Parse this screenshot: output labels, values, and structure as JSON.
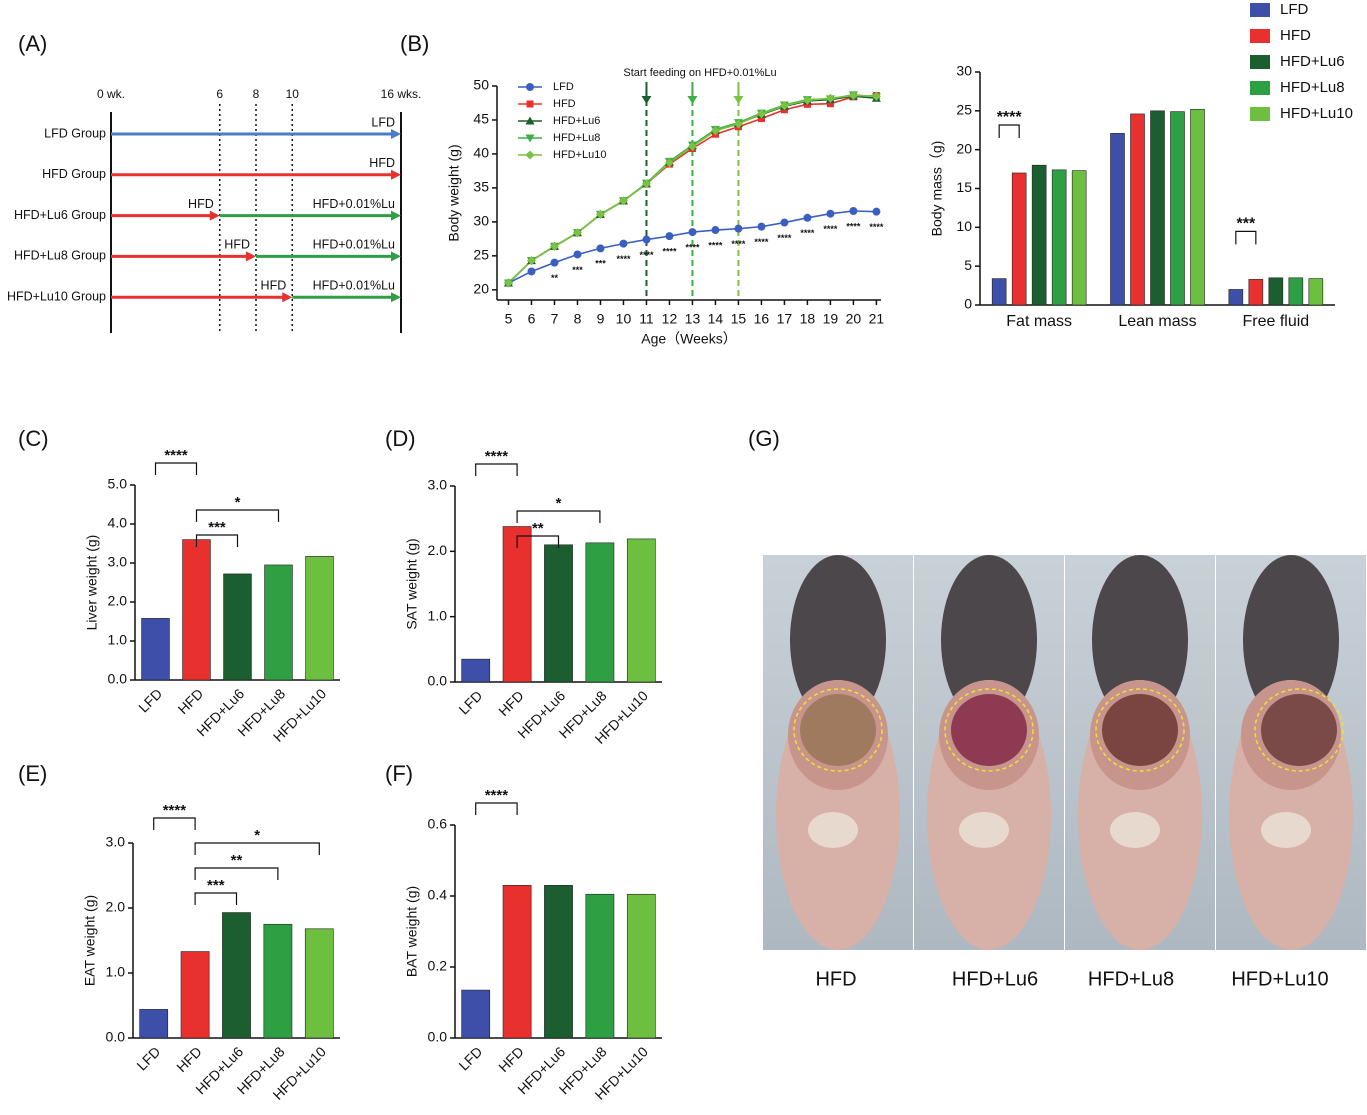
{
  "timeline": {
    "panel": "(A)",
    "ticks": [
      {
        "value": 0,
        "label": "0 wk."
      },
      6,
      8,
      10,
      {
        "value": 16,
        "label": "16 wks."
      }
    ],
    "rows": [
      {
        "name": "LFD Group",
        "color": "#4a7cc7",
        "segments": [
          {
            "label": "LFD",
            "color": "#4a7cc7",
            "to": 16
          }
        ]
      },
      {
        "name": "HFD Group",
        "color": "#e8312f",
        "segments": [
          {
            "label": "HFD",
            "color": "#e8312f",
            "to": 16
          }
        ]
      },
      {
        "name": "HFD+Lu6 Group",
        "color": "#1b6a2c",
        "segments": [
          {
            "label": "HFD",
            "color": "#e8312f",
            "to": 6
          },
          {
            "label": "HFD+0.01%Lu",
            "color": "#2ea043",
            "to": 16
          }
        ]
      },
      {
        "name": "HFD+Lu8 Group",
        "color": "#3aa63a",
        "segments": [
          {
            "label": "HFD",
            "color": "#e8312f",
            "to": 8
          },
          {
            "label": "HFD+0.01%Lu",
            "color": "#2ea043",
            "to": 16
          }
        ]
      },
      {
        "name": "HFD+Lu10 Group",
        "color": "#55b82e",
        "segments": [
          {
            "label": "HFD",
            "color": "#e8312f",
            "to": 10
          },
          {
            "label": "HFD+0.01%Lu",
            "color": "#2ea043",
            "to": 16
          }
        ]
      }
    ]
  },
  "chart_data": [
    {
      "type": "line",
      "panel": "(B)",
      "xlabel": "Age（Weeks）",
      "ylabel": "Body weight (g)",
      "x": [
        5,
        6,
        7,
        8,
        9,
        10,
        11,
        12,
        13,
        14,
        15,
        16,
        17,
        18,
        19,
        20,
        21
      ],
      "xlim": [
        4.5,
        21.2
      ],
      "xticks": [
        5,
        6,
        7,
        8,
        9,
        10,
        11,
        12,
        13,
        14,
        15,
        16,
        17,
        18,
        19,
        20,
        21
      ],
      "ylim": [
        18.5,
        50
      ],
      "yticks": [
        20,
        25,
        30,
        35,
        40,
        45,
        50
      ],
      "legend": "upper left",
      "annotation": "Start feeding on HFD+0.01%Lu",
      "feeding_lines": [
        {
          "x": 11,
          "color": "#1b5e30"
        },
        {
          "x": 13,
          "color": "#3cb043"
        },
        {
          "x": 15,
          "color": "#7cc242"
        }
      ],
      "significance": [
        {
          "x": 7,
          "label": "**"
        },
        {
          "x": 8,
          "label": "***"
        },
        {
          "x": 9,
          "label": "***"
        },
        {
          "x": 10,
          "label": "****"
        },
        {
          "x": 11,
          "label": "****"
        },
        {
          "x": 12,
          "label": "****"
        },
        {
          "x": 13,
          "label": "****"
        },
        {
          "x": 14,
          "label": "****"
        },
        {
          "x": 15,
          "label": "****"
        },
        {
          "x": 16,
          "label": "****"
        },
        {
          "x": 17,
          "label": "****"
        },
        {
          "x": 18,
          "label": "****"
        },
        {
          "x": 19,
          "label": "****"
        },
        {
          "x": 20,
          "label": "****"
        },
        {
          "x": 21,
          "label": "****"
        }
      ],
      "series": [
        {
          "name": "LFD",
          "color": "#3a5fc0",
          "marker": "circle",
          "values": [
            21,
            22.7,
            24,
            25.2,
            26.1,
            26.8,
            27.4,
            27.9,
            28.5,
            28.8,
            29,
            29.3,
            29.9,
            30.6,
            31.2,
            31.6,
            31.5
          ]
        },
        {
          "name": "HFD",
          "color": "#e8312f",
          "marker": "square",
          "values": [
            21,
            24.3,
            26.4,
            28.4,
            31.1,
            33.1,
            35.6,
            38.5,
            40.8,
            42.9,
            44,
            45.2,
            46.5,
            47.3,
            47.4,
            48.4,
            48.6
          ]
        },
        {
          "name": "HFD+Lu6",
          "color": "#1b5e30",
          "marker": "triangle-up",
          "values": [
            21,
            24.3,
            26.4,
            28.4,
            31.1,
            33.1,
            35.6,
            38.8,
            41.2,
            43.5,
            44.5,
            45.8,
            47,
            47.8,
            48,
            48.5,
            48.2
          ]
        },
        {
          "name": "HFD+Lu8",
          "color": "#3cb043",
          "marker": "triangle-down",
          "values": [
            21,
            24.3,
            26.4,
            28.4,
            31.1,
            33.1,
            35.7,
            38.9,
            41.3,
            43.6,
            44.6,
            46,
            47.2,
            48,
            48.1,
            48.7,
            48.4
          ]
        },
        {
          "name": "HFD+Lu10",
          "color": "#7cc242",
          "marker": "diamond",
          "values": [
            21,
            24.3,
            26.4,
            28.4,
            31.1,
            33.1,
            35.6,
            38.7,
            41.1,
            43.4,
            44.4,
            45.9,
            47.1,
            47.9,
            48.2,
            48.6,
            48.5
          ]
        }
      ]
    },
    {
      "type": "grouped_bar",
      "ylabel": "Body mass（g)",
      "categories": [
        "Fat mass",
        "Lean mass",
        "Free fluid"
      ],
      "ylim": [
        0,
        30
      ],
      "yticks": [
        0,
        5,
        10,
        15,
        20,
        25,
        30
      ],
      "legend": "outside upper right",
      "series": [
        {
          "name": "LFD",
          "color": "#3d4fa8",
          "values": [
            3.4,
            22.1,
            2.0
          ]
        },
        {
          "name": "HFD",
          "color": "#e8312f",
          "values": [
            17,
            24.6,
            3.3
          ]
        },
        {
          "name": "HFD+Lu6",
          "color": "#1b5e30",
          "values": [
            18,
            25,
            3.5
          ]
        },
        {
          "name": "HFD+Lu8",
          "color": "#2ea043",
          "values": [
            17.4,
            24.9,
            3.5
          ]
        },
        {
          "name": "HFD+Lu10",
          "color": "#6cbf3f",
          "values": [
            17.3,
            25.2,
            3.4
          ]
        }
      ],
      "comparisons": [
        {
          "category": "Fat mass",
          "groups": [
            "LFD",
            "HFD"
          ],
          "label": "****"
        },
        {
          "category": "Free fluid",
          "groups": [
            "LFD",
            "HFD"
          ],
          "label": "***"
        }
      ]
    },
    {
      "type": "bar",
      "panel": "(C)",
      "ylabel": "Liver weight (g)",
      "categories": [
        "LFD",
        "HFD",
        "HFD+Lu6",
        "HFD+Lu8",
        "HFD+Lu10"
      ],
      "values": [
        1.58,
        3.6,
        2.72,
        2.95,
        3.17
      ],
      "colors": [
        "#3d4fa8",
        "#e8312f",
        "#1b5e30",
        "#2ea043",
        "#6cbf3f"
      ],
      "ylim": [
        0,
        5
      ],
      "yticks": [
        {
          "value": 0,
          "label": "0.0"
        },
        {
          "value": 1,
          "label": "1.0"
        },
        {
          "value": 2,
          "label": "2.0"
        },
        {
          "value": 3,
          "label": "3.0"
        },
        {
          "value": 4,
          "label": "4.0"
        },
        {
          "value": 5,
          "label": "5.0"
        }
      ],
      "comparisons": [
        {
          "groups": [
            "LFD",
            "HFD"
          ],
          "label": "****"
        },
        {
          "groups": [
            "HFD",
            "HFD+Lu6"
          ],
          "label": "***"
        },
        {
          "groups": [
            "HFD",
            "HFD+Lu8"
          ],
          "label": "*"
        }
      ]
    },
    {
      "type": "bar",
      "panel": "(D)",
      "ylabel": "SAT weight (g)",
      "categories": [
        "LFD",
        "HFD",
        "HFD+Lu6",
        "HFD+Lu8",
        "HFD+Lu10"
      ],
      "values": [
        0.35,
        2.38,
        2.1,
        2.13,
        2.19
      ],
      "colors": [
        "#3d4fa8",
        "#e8312f",
        "#1b5e30",
        "#2ea043",
        "#6cbf3f"
      ],
      "ylim": [
        0,
        3
      ],
      "yticks": [
        {
          "value": 0,
          "label": "0.0"
        },
        {
          "value": 1,
          "label": "1.0"
        },
        {
          "value": 2,
          "label": "2.0"
        },
        {
          "value": 3,
          "label": "3.0"
        }
      ],
      "comparisons": [
        {
          "groups": [
            "LFD",
            "HFD"
          ],
          "label": "****"
        },
        {
          "groups": [
            "HFD",
            "HFD+Lu6"
          ],
          "label": "**"
        },
        {
          "groups": [
            "HFD",
            "HFD+Lu8"
          ],
          "label": "*"
        }
      ]
    },
    {
      "type": "bar",
      "panel": "(E)",
      "ylabel": "EAT weight (g)",
      "categories": [
        "LFD",
        "HFD",
        "HFD+Lu6",
        "HFD+Lu8",
        "HFD+Lu10"
      ],
      "values": [
        0.44,
        1.33,
        1.93,
        1.75,
        1.68
      ],
      "colors": [
        "#3d4fa8",
        "#e8312f",
        "#1b5e30",
        "#2ea043",
        "#6cbf3f"
      ],
      "ylim": [
        0,
        3
      ],
      "yticks": [
        {
          "value": 0,
          "label": "0.0"
        },
        {
          "value": 1,
          "label": "1.0"
        },
        {
          "value": 2,
          "label": "2.0"
        },
        {
          "value": 3,
          "label": "3.0"
        }
      ],
      "comparisons": [
        {
          "groups": [
            "LFD",
            "HFD"
          ],
          "label": "****"
        },
        {
          "groups": [
            "HFD",
            "HFD+Lu6"
          ],
          "label": "***"
        },
        {
          "groups": [
            "HFD",
            "HFD+Lu8"
          ],
          "label": "**"
        },
        {
          "groups": [
            "HFD",
            "HFD+Lu10"
          ],
          "label": "*"
        }
      ]
    },
    {
      "type": "bar",
      "panel": "(F)",
      "ylabel": "BAT weight (g)",
      "categories": [
        "LFD",
        "HFD",
        "HFD+Lu6",
        "HFD+Lu8",
        "HFD+Lu10"
      ],
      "values": [
        0.135,
        0.43,
        0.43,
        0.405,
        0.405
      ],
      "colors": [
        "#3d4fa8",
        "#e8312f",
        "#1b5e30",
        "#2ea043",
        "#6cbf3f"
      ],
      "ylim": [
        0,
        0.6
      ],
      "yticks": [
        {
          "value": 0,
          "label": "0.0"
        },
        0.2,
        0.4,
        0.6
      ],
      "comparisons": [
        {
          "groups": [
            "LFD",
            "HFD"
          ],
          "label": "****"
        }
      ]
    }
  ],
  "photo_panel": {
    "panel": "(G)",
    "captions": [
      "HFD",
      "HFD+Lu6",
      "HFD+Lu8",
      "HFD+Lu10"
    ]
  }
}
